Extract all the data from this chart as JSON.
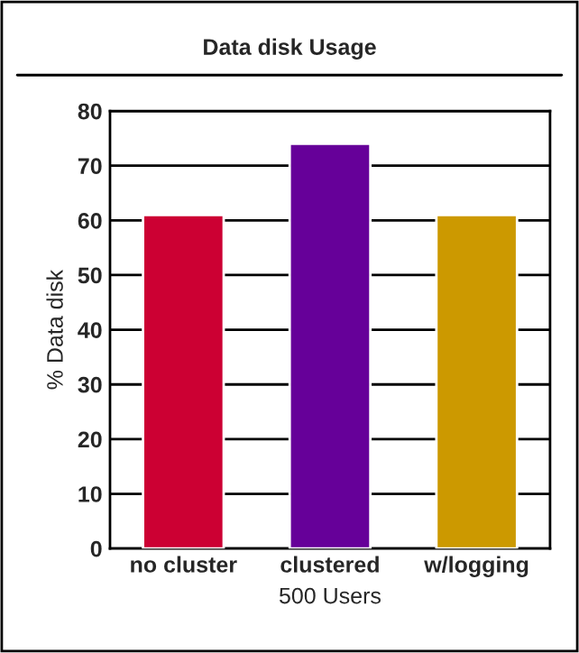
{
  "chart_data": {
    "type": "bar",
    "title": "Data disk Usage",
    "xlabel": "500 Users",
    "ylabel": "% Data disk",
    "categories": [
      "no cluster",
      "clustered",
      "w/logging"
    ],
    "values": [
      61,
      74,
      61
    ],
    "colors": [
      "#cc0033",
      "#660099",
      "#cc9900"
    ],
    "ylim": [
      0,
      80
    ],
    "yticks": [
      0,
      10,
      20,
      30,
      40,
      50,
      60,
      70,
      80
    ],
    "grid": "y",
    "legend": false
  }
}
